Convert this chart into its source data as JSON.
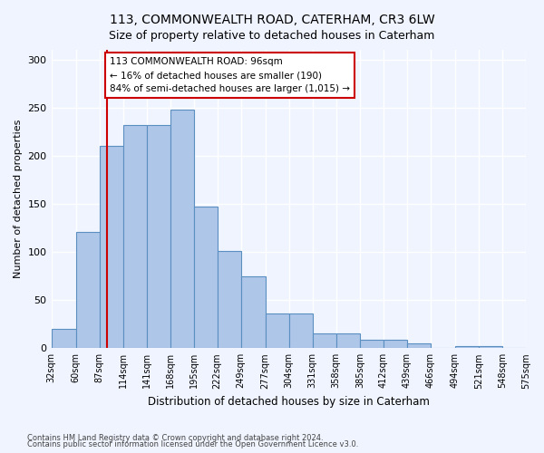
{
  "title": "113, COMMONWEALTH ROAD, CATERHAM, CR3 6LW",
  "subtitle": "Size of property relative to detached houses in Caterham",
  "xlabel": "Distribution of detached houses by size in Caterham",
  "ylabel": "Number of detached properties",
  "bar_color": "#aec6e8",
  "bar_edge_color": "#5a8fc2",
  "background_color": "#f0f4ff",
  "grid_color": "#ffffff",
  "bin_edges": [
    32,
    60,
    87,
    114,
    141,
    168,
    195,
    222,
    249,
    277,
    304,
    331,
    358,
    385,
    412,
    439,
    466,
    494,
    521,
    548,
    575
  ],
  "bin_labels": [
    "32sqm",
    "60sqm",
    "87sqm",
    "114sqm",
    "141sqm",
    "168sqm",
    "195sqm",
    "222sqm",
    "249sqm",
    "277sqm",
    "304sqm",
    "331sqm",
    "358sqm",
    "385sqm",
    "412sqm",
    "439sqm",
    "466sqm",
    "494sqm",
    "521sqm",
    "548sqm",
    "575sqm"
  ],
  "bar_heights": [
    20,
    121,
    210,
    232,
    232,
    248,
    147,
    101,
    75,
    36,
    36,
    15,
    15,
    9,
    9,
    5,
    0,
    2,
    2,
    0
  ],
  "property_size": 96,
  "property_line_color": "#cc0000",
  "annotation_text": "113 COMMONWEALTH ROAD: 96sqm\n← 16% of detached houses are smaller (190)\n84% of semi-detached houses are larger (1,015) →",
  "annotation_box_color": "#ffffff",
  "annotation_box_edge_color": "#cc0000",
  "ylim": [
    0,
    310
  ],
  "yticks": [
    0,
    50,
    100,
    150,
    200,
    250,
    300
  ],
  "footer_line1": "Contains HM Land Registry data © Crown copyright and database right 2024.",
  "footer_line2": "Contains public sector information licensed under the Open Government Licence v3.0."
}
